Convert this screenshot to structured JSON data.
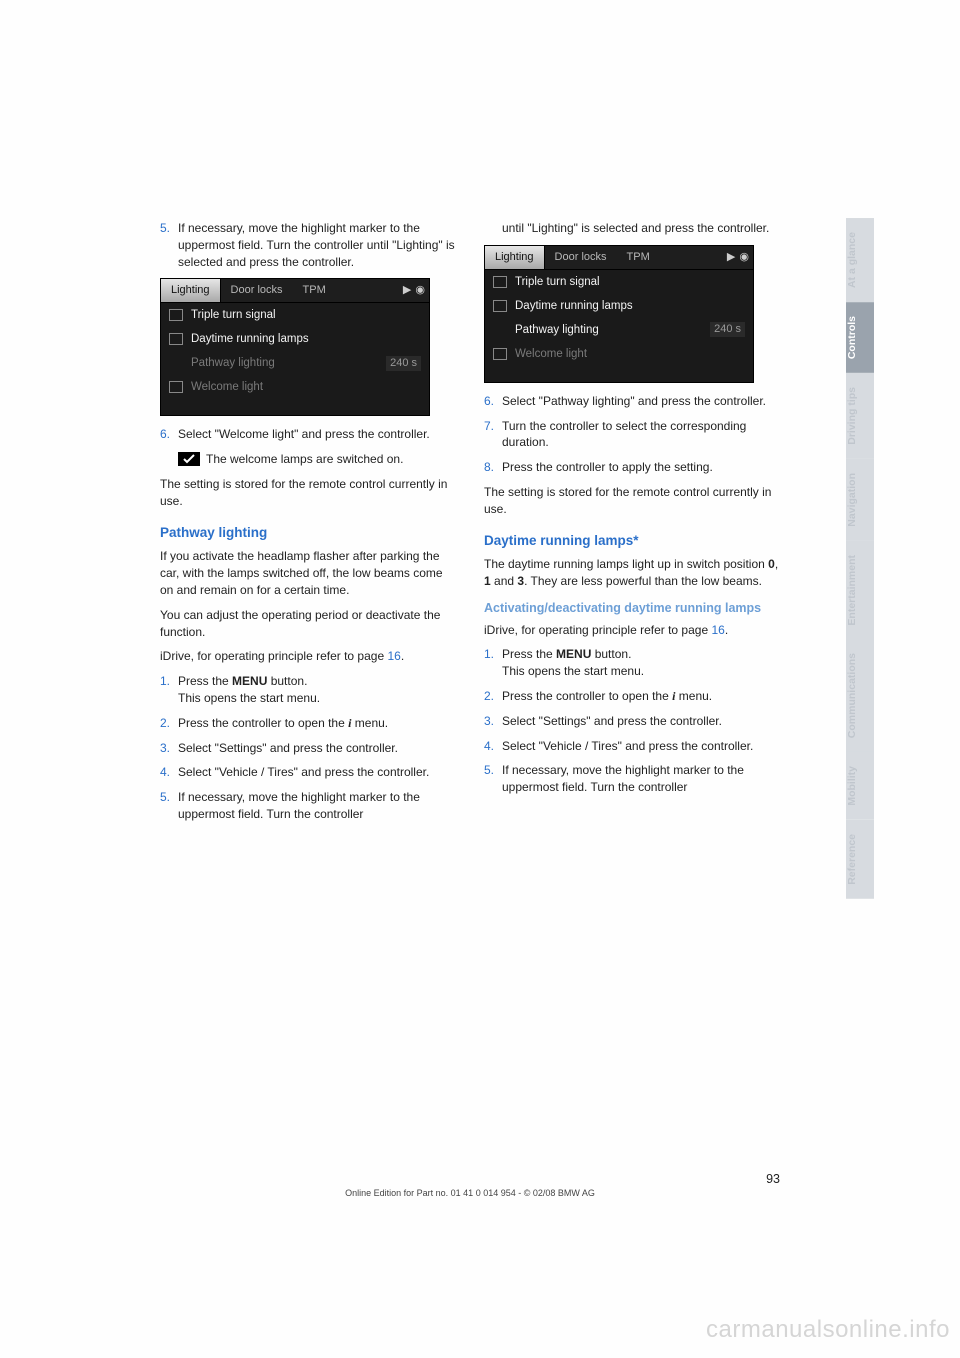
{
  "page_number": "93",
  "edition_line": "Online Edition for Part no. 01 41 0 014 954  -  © 02/08 BMW AG",
  "watermark": "carmanualsonline.info",
  "sidetabs": [
    {
      "label": "At a glance",
      "active": false
    },
    {
      "label": "Controls",
      "active": true
    },
    {
      "label": "Driving tips",
      "active": false
    },
    {
      "label": "Navigation",
      "active": false
    },
    {
      "label": "Entertainment",
      "active": false
    },
    {
      "label": "Communications",
      "active": false
    },
    {
      "label": "Mobility",
      "active": false
    },
    {
      "label": "Reference",
      "active": false
    }
  ],
  "idrive_screen": {
    "tabs": [
      "Lighting",
      "Door locks",
      "TPM"
    ],
    "active_tab": 0,
    "rows": [
      {
        "checkbox": true,
        "label": "Triple turn signal",
        "highlight": "bright"
      },
      {
        "checkbox": true,
        "label": "Daytime running lamps",
        "highlight": "bright"
      },
      {
        "checkbox": false,
        "label": "Pathway lighting",
        "value": "240 s",
        "highlight": "dim"
      },
      {
        "checkbox": true,
        "label": "Welcome light",
        "highlight": "dim"
      }
    ]
  },
  "idrive_screen2": {
    "tabs": [
      "Lighting",
      "Door locks",
      "TPM"
    ],
    "active_tab": 0,
    "rows": [
      {
        "checkbox": true,
        "label": "Triple turn signal",
        "highlight": "bright"
      },
      {
        "checkbox": true,
        "label": "Daytime running lamps",
        "highlight": "bright"
      },
      {
        "checkbox": false,
        "label": "Pathway lighting",
        "value": "240 s",
        "highlight": "sel-bright"
      },
      {
        "checkbox": true,
        "label": "Welcome light",
        "highlight": "dim"
      }
    ]
  },
  "left": {
    "step5": "If necessary, move the highlight marker to the uppermost field. Turn the controller until \"Lighting\" is selected and press the controller.",
    "step6": "Select \"Welcome light\" and press the controller.",
    "checkmark_note": "The welcome lamps are switched on.",
    "stored_note": "The setting is stored for the remote control currently in use.",
    "h_pathway": "Pathway lighting",
    "pathway_p1": "If you activate the headlamp flasher after parking the car, with the lamps switched off, the low beams come on and remain on for a certain time.",
    "pathway_p2": "You can adjust the operating period or deactivate the function.",
    "idrive_ref_a": "iDrive, for operating principle refer to page ",
    "idrive_ref_b": "16",
    "idrive_ref_c": ".",
    "s1a": "Press the ",
    "s1b": "MENU",
    "s1c": " button.",
    "s1d": "This opens the start menu.",
    "s2a": "Press the controller to open the ",
    "s2b": " menu.",
    "s3": "Select \"Settings\" and press the controller.",
    "s4": "Select \"Vehicle / Tires\" and press the controller.",
    "s5": "If necessary, move the highlight marker to the uppermost field. Turn the controller"
  },
  "right": {
    "cont": "until \"Lighting\" is selected and press the controller.",
    "step6": "Select \"Pathway lighting\" and press the controller.",
    "step7": "Turn the controller to select the corresponding duration.",
    "step8": "Press the controller to apply the setting.",
    "stored_note": "The setting is stored for the remote control currently in use.",
    "h_drl": "Daytime running lamps*",
    "drl_p_a": "The daytime running lamps light up in switch position ",
    "drl_p_b": "0",
    "drl_p_c": ", ",
    "drl_p_d": "1",
    "drl_p_e": " and ",
    "drl_p_f": "3",
    "drl_p_g": ". They are less powerful than the low beams.",
    "h_drl_sub": "Activating/deactivating daytime running lamps",
    "idrive_ref_a": "iDrive, for operating principle refer to page ",
    "idrive_ref_b": "16",
    "idrive_ref_c": ".",
    "s1a": "Press the ",
    "s1b": "MENU",
    "s1c": " button.",
    "s1d": "This opens the start menu.",
    "s2a": "Press the controller to open the ",
    "s2b": " menu.",
    "s3": "Select \"Settings\" and press the controller.",
    "s4": "Select \"Vehicle / Tires\" and press the controller.",
    "s5": "If necessary, move the highlight marker to the uppermost field. Turn the controller"
  },
  "i_glyph": "i",
  "arrow_glyph": "▶",
  "dot_glyph": "◉"
}
